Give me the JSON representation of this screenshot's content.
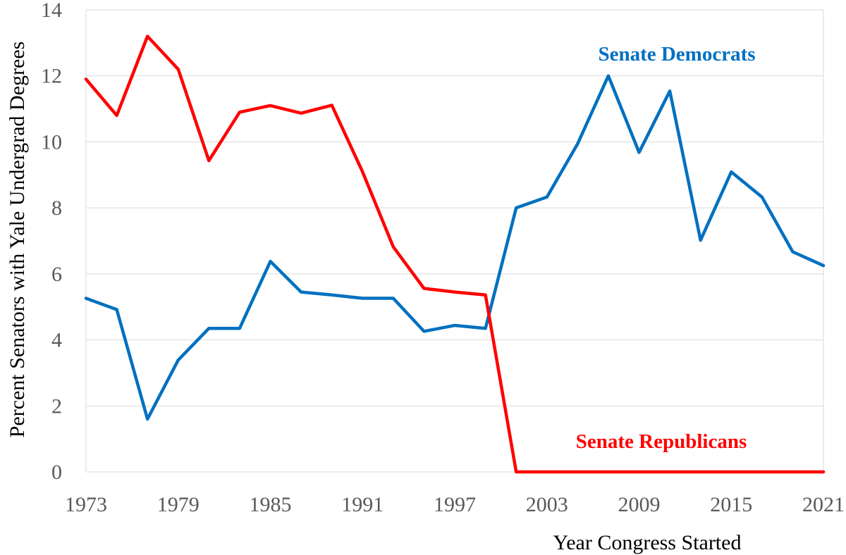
{
  "chart_data": {
    "type": "line",
    "title": "",
    "xlabel": "Year Congress Started",
    "ylabel": "Percent Senators with Yale Undergrad Degrees",
    "xlim": [
      1973,
      2021
    ],
    "ylim": [
      0,
      14
    ],
    "x_ticks": [
      "1973",
      "1979",
      "1985",
      "1991",
      "1997",
      "2003",
      "2009",
      "2015",
      "2021"
    ],
    "y_ticks": [
      "0",
      "2",
      "4",
      "6",
      "8",
      "10",
      "12",
      "14"
    ],
    "grid": true,
    "legend": "none",
    "x": [
      1973,
      1975,
      1977,
      1979,
      1981,
      1983,
      1985,
      1987,
      1989,
      1991,
      1993,
      1995,
      1997,
      1999,
      2001,
      2003,
      2005,
      2007,
      2009,
      2011,
      2013,
      2015,
      2017,
      2019,
      2021
    ],
    "series": [
      {
        "name": "Senate Democrats",
        "color": "#0070c0",
        "values": [
          5.26,
          4.92,
          1.6,
          3.39,
          4.35,
          4.35,
          6.38,
          5.45,
          5.36,
          5.26,
          5.26,
          4.26,
          4.44,
          4.35,
          8.0,
          8.33,
          9.94,
          12.0,
          9.68,
          11.54,
          7.02,
          9.09,
          8.33,
          6.67,
          6.25
        ]
      },
      {
        "name": "Senate Republicans",
        "color": "#ff0000",
        "values": [
          11.9,
          10.8,
          13.2,
          12.2,
          9.43,
          10.9,
          11.1,
          10.87,
          11.11,
          9.09,
          6.82,
          5.56,
          5.45,
          5.36,
          0,
          0,
          0,
          0,
          0,
          0,
          0,
          0,
          0,
          0,
          0
        ]
      }
    ]
  }
}
